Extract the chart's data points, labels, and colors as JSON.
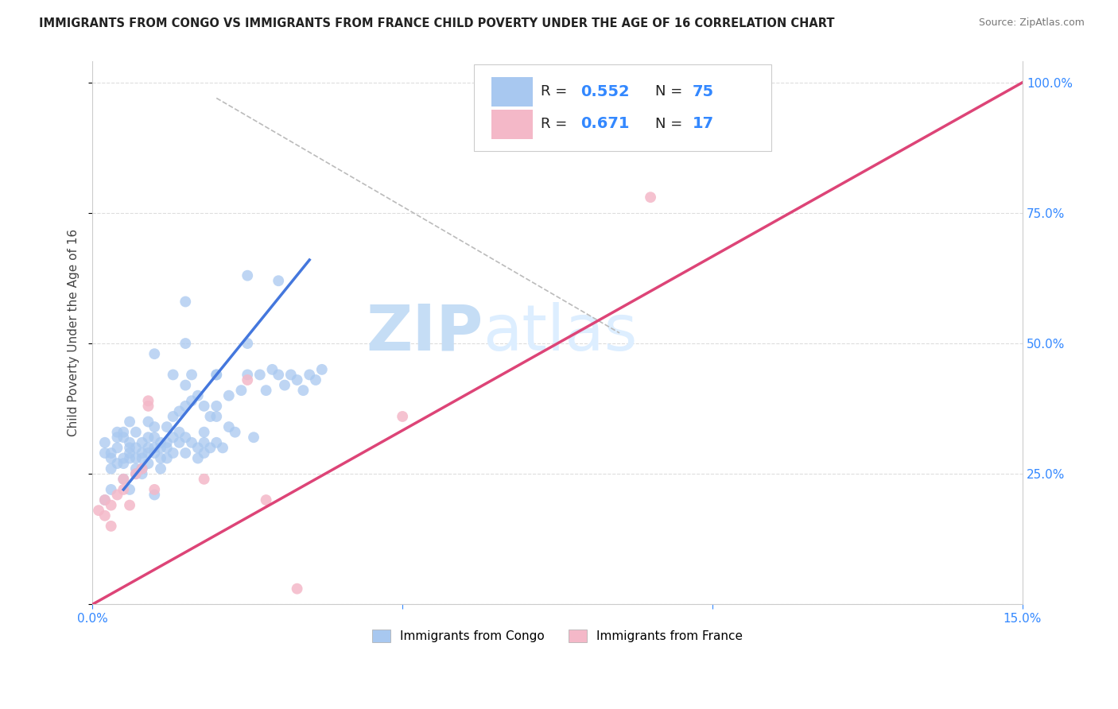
{
  "title": "IMMIGRANTS FROM CONGO VS IMMIGRANTS FROM FRANCE CHILD POVERTY UNDER THE AGE OF 16 CORRELATION CHART",
  "source": "Source: ZipAtlas.com",
  "ylabel_label": "Child Poverty Under the Age of 16",
  "legend_labels": [
    "Immigrants from Congo",
    "Immigrants from France"
  ],
  "blue_color": "#a8c8f0",
  "pink_color": "#f4b8c8",
  "blue_line_color": "#4477dd",
  "pink_line_color": "#dd4477",
  "watermark_zip": "ZIP",
  "watermark_atlas": "atlas",
  "blue_scatter": [
    [
      0.3,
      28
    ],
    [
      0.4,
      30
    ],
    [
      0.5,
      32
    ],
    [
      0.5,
      27
    ],
    [
      0.6,
      31
    ],
    [
      0.6,
      29
    ],
    [
      0.6,
      28
    ],
    [
      0.7,
      30
    ],
    [
      0.7,
      33
    ],
    [
      0.7,
      25
    ],
    [
      0.8,
      31
    ],
    [
      0.8,
      29
    ],
    [
      0.8,
      28
    ],
    [
      0.9,
      30
    ],
    [
      0.9,
      27
    ],
    [
      0.9,
      35
    ],
    [
      1.0,
      32
    ],
    [
      1.0,
      30
    ],
    [
      1.0,
      29
    ],
    [
      1.0,
      21
    ],
    [
      1.1,
      31
    ],
    [
      1.1,
      28
    ],
    [
      1.1,
      26
    ],
    [
      1.2,
      34
    ],
    [
      1.2,
      31
    ],
    [
      1.2,
      30
    ],
    [
      1.3,
      32
    ],
    [
      1.3,
      29
    ],
    [
      1.3,
      44
    ],
    [
      1.4,
      33
    ],
    [
      1.4,
      31
    ],
    [
      1.5,
      32
    ],
    [
      1.5,
      29
    ],
    [
      1.5,
      42
    ],
    [
      1.6,
      44
    ],
    [
      1.6,
      31
    ],
    [
      1.7,
      30
    ],
    [
      1.7,
      28
    ],
    [
      1.8,
      33
    ],
    [
      1.8,
      31
    ],
    [
      1.8,
      29
    ],
    [
      1.9,
      30
    ],
    [
      2.0,
      44
    ],
    [
      2.0,
      31
    ],
    [
      2.0,
      36
    ],
    [
      2.1,
      30
    ],
    [
      2.2,
      34
    ],
    [
      2.3,
      33
    ],
    [
      2.4,
      41
    ],
    [
      2.5,
      44
    ],
    [
      2.5,
      63
    ],
    [
      2.6,
      32
    ],
    [
      2.7,
      44
    ],
    [
      2.8,
      41
    ],
    [
      2.9,
      45
    ],
    [
      3.0,
      44
    ],
    [
      3.0,
      62
    ],
    [
      3.1,
      42
    ],
    [
      3.2,
      44
    ],
    [
      3.3,
      43
    ],
    [
      3.4,
      41
    ],
    [
      3.5,
      44
    ],
    [
      3.6,
      43
    ],
    [
      3.7,
      45
    ],
    [
      0.2,
      31
    ],
    [
      0.3,
      29
    ],
    [
      0.4,
      33
    ],
    [
      0.5,
      28
    ],
    [
      0.6,
      22
    ],
    [
      0.7,
      26
    ],
    [
      0.8,
      25
    ],
    [
      1.0,
      48
    ],
    [
      1.5,
      50
    ],
    [
      1.5,
      58
    ],
    [
      2.0,
      44
    ],
    [
      2.5,
      50
    ],
    [
      0.2,
      20
    ],
    [
      0.3,
      22
    ],
    [
      0.2,
      29
    ],
    [
      0.4,
      27
    ],
    [
      0.5,
      24
    ],
    [
      0.6,
      35
    ],
    [
      0.3,
      26
    ],
    [
      0.4,
      32
    ],
    [
      0.5,
      33
    ],
    [
      0.6,
      30
    ],
    [
      0.7,
      28
    ],
    [
      0.8,
      26
    ],
    [
      0.9,
      32
    ],
    [
      0.9,
      29
    ],
    [
      1.0,
      34
    ],
    [
      1.1,
      30
    ],
    [
      1.2,
      28
    ],
    [
      1.3,
      36
    ],
    [
      1.4,
      37
    ],
    [
      1.5,
      38
    ],
    [
      1.6,
      39
    ],
    [
      1.7,
      40
    ],
    [
      1.8,
      38
    ],
    [
      1.9,
      36
    ],
    [
      2.0,
      38
    ],
    [
      2.2,
      40
    ]
  ],
  "pink_scatter": [
    [
      0.1,
      18
    ],
    [
      0.2,
      17
    ],
    [
      0.2,
      20
    ],
    [
      0.3,
      15
    ],
    [
      0.3,
      19
    ],
    [
      0.4,
      21
    ],
    [
      0.5,
      22
    ],
    [
      0.5,
      24
    ],
    [
      0.6,
      19
    ],
    [
      0.7,
      25
    ],
    [
      0.8,
      26
    ],
    [
      0.9,
      38
    ],
    [
      0.9,
      39
    ],
    [
      1.0,
      22
    ],
    [
      1.8,
      24
    ],
    [
      2.5,
      43
    ],
    [
      2.8,
      20
    ],
    [
      3.3,
      3
    ],
    [
      5.0,
      36
    ],
    [
      9.0,
      78
    ]
  ],
  "xlim": [
    0,
    15.0
  ],
  "ylim": [
    0,
    104
  ],
  "xtick_positions": [
    0,
    5,
    10,
    15
  ],
  "xtick_labels": [
    "0.0%",
    "",
    "",
    "15.0%"
  ],
  "ytick_positions": [
    0,
    25,
    50,
    75,
    100
  ],
  "ytick_labels": [
    "",
    "25.0%",
    "50.0%",
    "75.0%",
    "100.0%"
  ],
  "blue_line_x": [
    0.5,
    3.5
  ],
  "blue_line_y": [
    22,
    66
  ],
  "pink_line_x": [
    0,
    15.0
  ],
  "pink_line_y": [
    0,
    100
  ],
  "dash_line_x": [
    2.0,
    8.5
  ],
  "dash_line_y": [
    97,
    52
  ]
}
